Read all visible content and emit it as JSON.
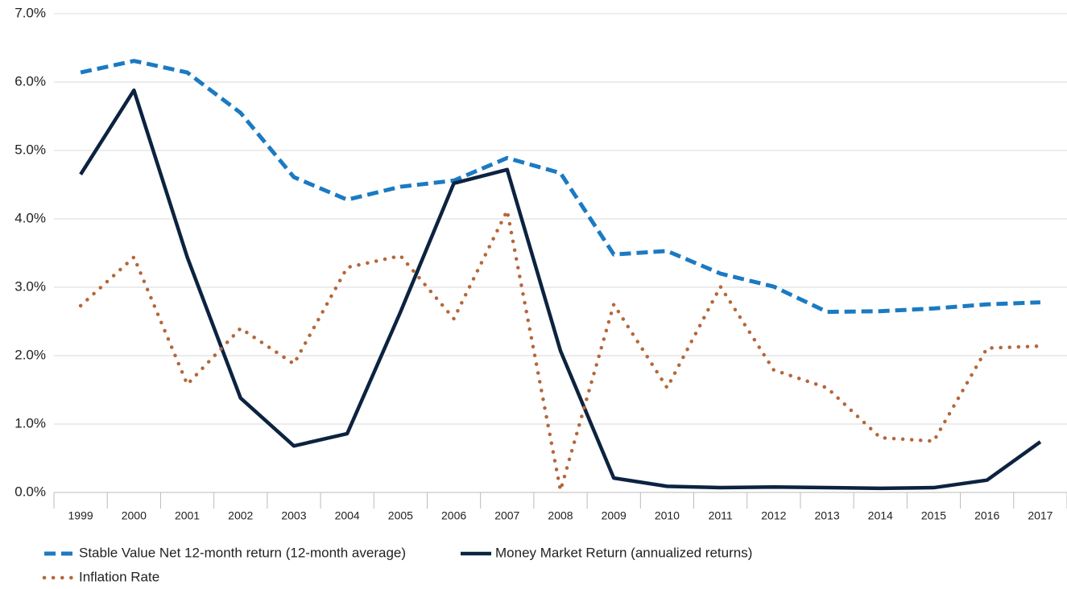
{
  "chart_data": {
    "type": "line",
    "categories": [
      "1999",
      "2000",
      "2001",
      "2002",
      "2003",
      "2004",
      "2005",
      "2006",
      "2007",
      "2008",
      "2009",
      "2010",
      "2011",
      "2012",
      "2013",
      "2014",
      "2015",
      "2016",
      "2017"
    ],
    "series": [
      {
        "name": "Stable Value Net 12-month return (12-month average)",
        "color": "#1b7ac2",
        "dash": "dashed",
        "values": [
          6.14,
          6.31,
          6.14,
          5.55,
          4.61,
          4.28,
          4.47,
          4.56,
          4.89,
          4.67,
          3.48,
          3.53,
          3.2,
          3.01,
          2.64,
          2.65,
          2.69,
          2.75,
          2.78
        ]
      },
      {
        "name": "Money Market Return (annualized returns)",
        "color": "#0c2340",
        "dash": "solid",
        "values": [
          4.65,
          5.88,
          3.44,
          1.38,
          0.68,
          0.86,
          2.64,
          4.52,
          4.72,
          2.07,
          0.21,
          0.09,
          0.07,
          0.08,
          0.07,
          0.06,
          0.07,
          0.18,
          0.74
        ]
      },
      {
        "name": "Inflation Rate",
        "color": "#b5673a",
        "dash": "dotted",
        "values": [
          2.73,
          3.44,
          1.58,
          2.4,
          1.88,
          3.29,
          3.46,
          2.54,
          4.12,
          0.03,
          2.75,
          1.53,
          3.01,
          1.79,
          1.53,
          0.8,
          0.75,
          2.11,
          2.14
        ]
      }
    ],
    "ylim": [
      0,
      7
    ],
    "yticks": [
      {
        "value": 0,
        "label": "0.0%"
      },
      {
        "value": 1,
        "label": "1.0%"
      },
      {
        "value": 2,
        "label": "2.0%"
      },
      {
        "value": 3,
        "label": "3.0%"
      },
      {
        "value": 4,
        "label": "4.0%"
      },
      {
        "value": 5,
        "label": "5.0%"
      },
      {
        "value": 6,
        "label": "6.0%"
      },
      {
        "value": 7,
        "label": "7.0%"
      }
    ],
    "grid": true
  }
}
